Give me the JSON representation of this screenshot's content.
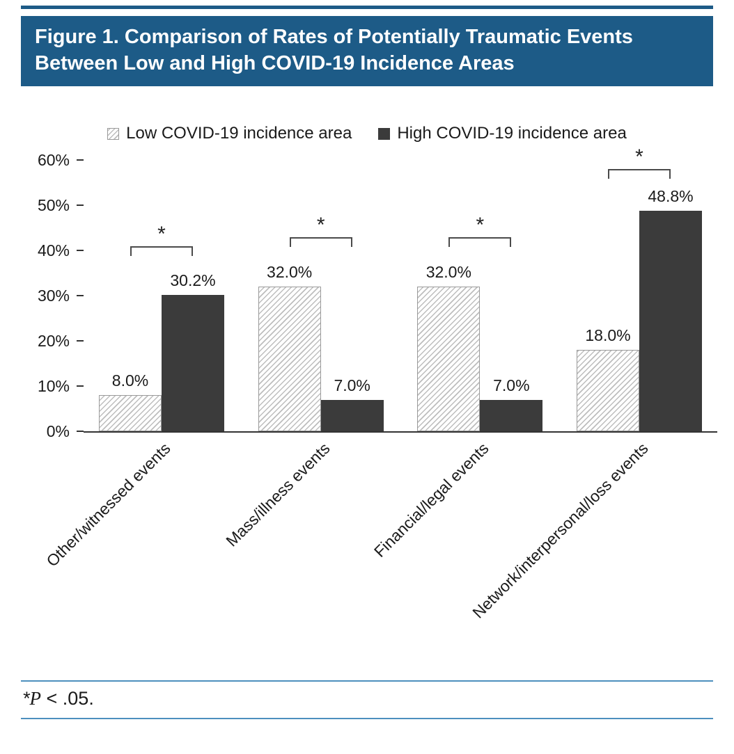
{
  "header": {
    "title": "Figure 1. Comparison of Rates of Potentially Traumatic Events Between Low and High COVID-19 Incidence Areas"
  },
  "legend": {
    "items": [
      {
        "label": "Low COVID-19 incidence area",
        "style": "hatched"
      },
      {
        "label": "High COVID-19 incidence area",
        "style": "solid-dark"
      }
    ]
  },
  "footnote": {
    "star": "*",
    "p": "P",
    "rest": " < .05."
  },
  "colors": {
    "accent_blue": "#1d5b87",
    "rule_blue": "#4d8fbe",
    "bar_dark": "#3b3b3b",
    "hatch_line": "#bdbdbd",
    "hatch_border": "#9a9a9a"
  },
  "chart_data": {
    "type": "bar",
    "title": "Figure 1. Comparison of Rates of Potentially Traumatic Events Between Low and High COVID-19 Incidence Areas",
    "categories": [
      "Other/witnessed events",
      "Mass/illness events",
      "Financial/legal events",
      "Network/interpersonal/loss events"
    ],
    "series": [
      {
        "name": "Low COVID-19 incidence area",
        "values": [
          8.0,
          32.0,
          32.0,
          18.0
        ],
        "labels": [
          "8.0%",
          "32.0%",
          "32.0%",
          "18.0%"
        ],
        "style": "hatched"
      },
      {
        "name": "High COVID-19 incidence area",
        "values": [
          30.2,
          7.0,
          7.0,
          48.8
        ],
        "labels": [
          "30.2%",
          "7.0%",
          "7.0%",
          "48.8%"
        ],
        "style": "solid-dark"
      }
    ],
    "ylim": [
      0,
      60
    ],
    "yticks": [
      "0%",
      "10%",
      "20%",
      "30%",
      "40%",
      "50%",
      "60%"
    ],
    "significance": [
      {
        "label": "*",
        "level_pct": 41
      },
      {
        "label": "*",
        "level_pct": 43
      },
      {
        "label": "*",
        "level_pct": 43
      },
      {
        "label": "*",
        "level_pct": 58
      }
    ],
    "legend_position": "top",
    "grid": false
  }
}
